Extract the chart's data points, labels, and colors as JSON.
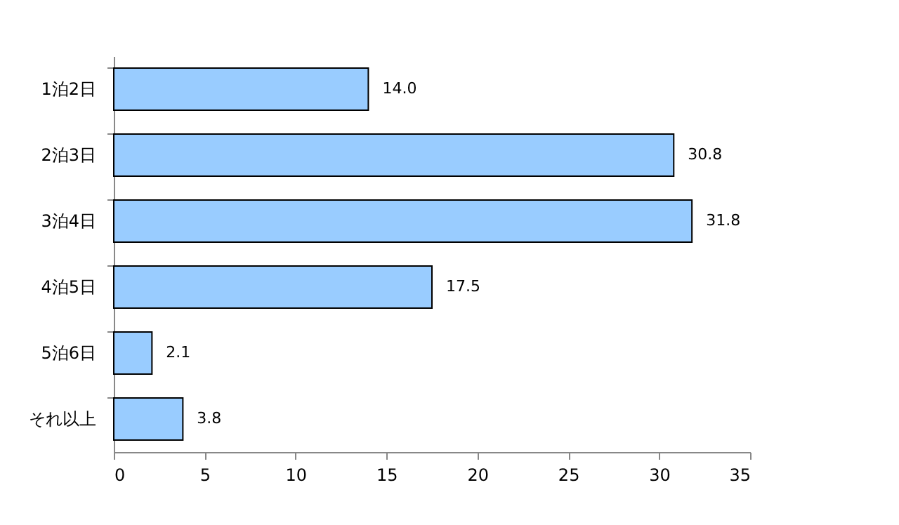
{
  "chart_data": {
    "type": "bar",
    "orientation": "horizontal",
    "categories": [
      "1泊2日",
      "2泊3日",
      "3泊4日",
      "4泊5日",
      "5泊6日",
      "それ以上"
    ],
    "values": [
      14.0,
      30.8,
      31.8,
      17.5,
      2.1,
      3.8
    ],
    "value_labels": [
      "14.0",
      "30.8",
      "31.8",
      "17.5",
      "2.1",
      "3.8"
    ],
    "color": "#99ccff",
    "xlim": [
      0,
      35
    ],
    "xticks": [
      0,
      5,
      10,
      15,
      20,
      25,
      30,
      35
    ],
    "grid": false
  }
}
